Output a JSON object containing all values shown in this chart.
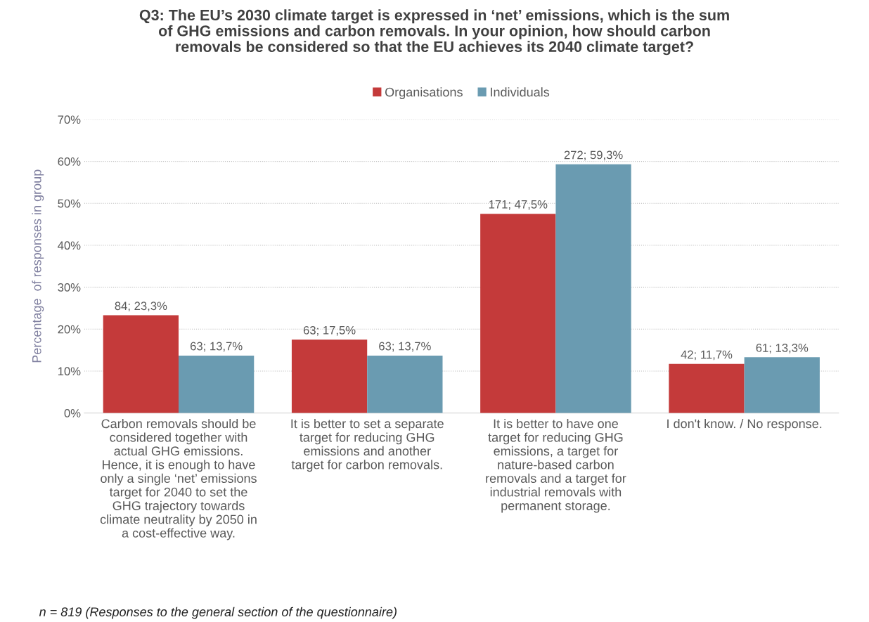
{
  "chart_data": {
    "type": "bar",
    "title": "Q3: The EU’s 2030 climate target is expressed in ‘net’ emissions, which is the sum\nof GHG emissions and carbon removals. In your opinion, how should carbon\nremovals be considered so that the EU achieves its 2040 climate target?",
    "ylabel": "Percentage  of responses in group",
    "categories": [
      "Carbon removals should be\nconsidered together with\nactual GHG emissions.\nHence, it is enough to have\nonly a single ‘net’ emissions\ntarget for 2040 to set the\nGHG trajectory towards\nclimate neutrality by 2050 in\na cost-effective way.",
      "It is better to set a separate\ntarget for reducing GHG\nemissions and another\ntarget for carbon removals.",
      "It is better to have one\ntarget for reducing GHG\nemissions, a target for\nnature-based carbon\nremovals and a target for\nindustrial removals with\npermanent storage.",
      "I don't know. / No response."
    ],
    "series": [
      {
        "name": "Organisations",
        "color": "#c43a3a",
        "values": [
          23.3,
          17.5,
          47.5,
          11.7
        ],
        "value_labels": [
          "84; 23,3%",
          "63; 17,5%",
          "171; 47,5%",
          "42; 11,7%"
        ]
      },
      {
        "name": "Individuals",
        "color": "#6a9bb1",
        "values": [
          13.7,
          13.7,
          59.3,
          13.3
        ],
        "value_labels": [
          "63; 13,7%",
          "63; 13,7%",
          "272; 59,3%",
          "61; 13,3%"
        ]
      }
    ],
    "ylim": [
      0,
      70
    ],
    "yticks": [
      {
        "value": 0,
        "label": "0%"
      },
      {
        "value": 10,
        "label": "10%"
      },
      {
        "value": 20,
        "label": "20%"
      },
      {
        "value": 30,
        "label": "30%"
      },
      {
        "value": 40,
        "label": "40%"
      },
      {
        "value": 50,
        "label": "50%"
      },
      {
        "value": 60,
        "label": "60%"
      },
      {
        "value": 70,
        "label": "70%"
      }
    ],
    "grid": "y",
    "legend": "top",
    "annotations": [
      "n = 819 (Responses to the general section of the questionnaire)"
    ]
  }
}
